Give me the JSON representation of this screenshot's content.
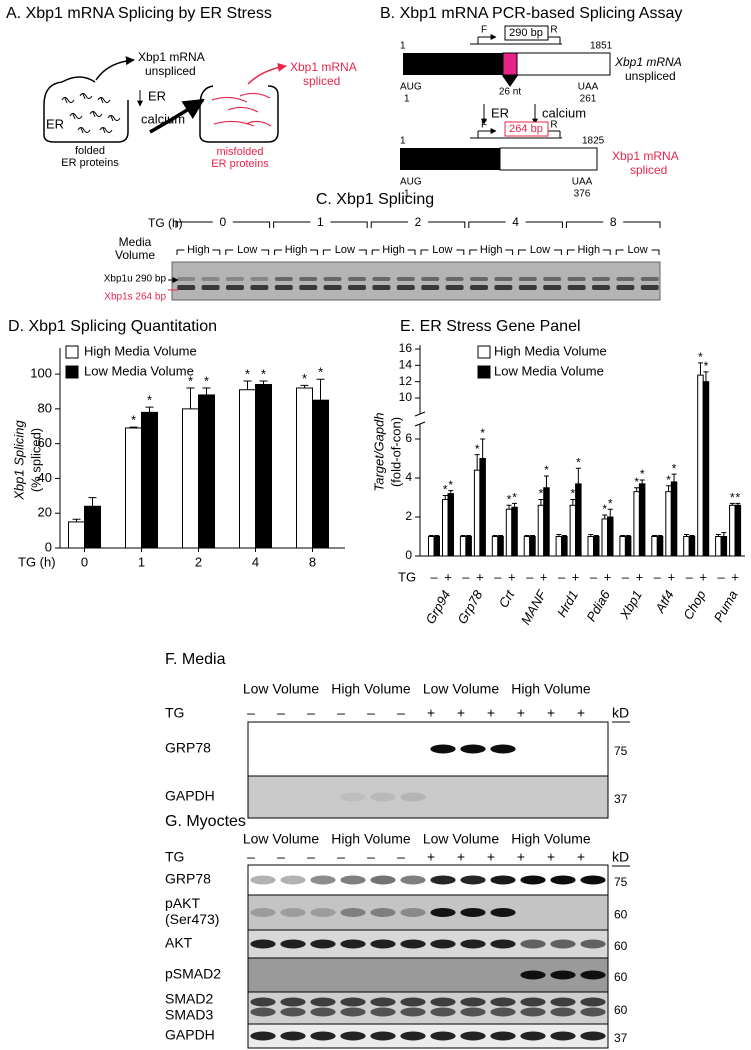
{
  "panel_a": {
    "title": "A. Xbp1 mRNA Splicing by ER Stress",
    "unspliced": [
      "Xbp1 mRNA",
      "unspliced"
    ],
    "er": "ER",
    "folded": [
      "folded",
      "ER proteins"
    ],
    "stimulus": [
      "ER",
      "calcium"
    ],
    "misfolded": [
      "misfolded",
      "ER proteins"
    ],
    "spliced": [
      "Xbp1 mRNA",
      "spliced"
    ]
  },
  "panel_b": {
    "title": "B. Xbp1 mRNA PCR-based Splicing Assay",
    "unspliced": {
      "start": "1",
      "end": "1851",
      "forward": "F",
      "reverse": "R",
      "product": "290 bp",
      "start_codon": "AUG",
      "start_pos": "1",
      "insert": "26 nt",
      "stop_codon": "UAA",
      "stop_pos": "261",
      "label": [
        "Xbp1 mRNA",
        "unspliced"
      ]
    },
    "stimulus": [
      "ER",
      "calcium"
    ],
    "spliced": {
      "start": "1",
      "end": "1825",
      "forward": "F",
      "reverse": "R",
      "product": "264 bp",
      "start_codon": "AUG",
      "start_pos": "1",
      "stop_codon": "UAA",
      "stop_pos": "376",
      "label": [
        "Xbp1 mRNA",
        "spliced"
      ]
    }
  },
  "panel_c": {
    "title": "C. Xbp1 Splicing",
    "tg_label": "TG (h)",
    "times": [
      "0",
      "1",
      "2",
      "4",
      "8"
    ],
    "media_label": [
      "Media",
      "Volume"
    ],
    "volumes": [
      "High",
      "Low",
      "High",
      "Low",
      "High",
      "Low",
      "High",
      "Low",
      "High",
      "Low"
    ],
    "bands": [
      "Xbp1u 290 bp",
      "Xbp1s 264 bp"
    ]
  },
  "chart_data": [
    {
      "type": "bar",
      "title": "D. Xbp1 Splicing Quantitation",
      "xlabel": "TG (h)",
      "ylabel": [
        "Xbp1 Splicing",
        "(% spliced)"
      ],
      "categories": [
        "0",
        "1",
        "2",
        "4",
        "8"
      ],
      "series": [
        {
          "name": "High Media Volume",
          "color": "#ffffff",
          "values": [
            15,
            69,
            80,
            91,
            92
          ],
          "errors": [
            1.5,
            0.5,
            12,
            5,
            1.5
          ],
          "significance": [
            null,
            "*",
            "*",
            "*",
            "*"
          ]
        },
        {
          "name": "Low  Media Volume",
          "color": "#000000",
          "values": [
            24,
            78,
            88,
            94,
            85
          ],
          "errors": [
            5,
            3,
            4,
            2,
            12
          ],
          "significance": [
            null,
            "*",
            "*",
            "*",
            "*"
          ]
        }
      ],
      "ylim": [
        0,
        115
      ],
      "yticks": [
        0,
        20,
        40,
        60,
        80,
        100
      ]
    },
    {
      "type": "bar",
      "title": "E. ER Stress Gene Panel",
      "xlabel": "TG",
      "ylabel": [
        "Target/Gapdh",
        "(fold-of-con)"
      ],
      "groups": [
        "Grp94",
        "Grp78",
        "Crt",
        "MANF",
        "Hrd1",
        "Pdia6",
        "Xbp1",
        "Atf4",
        "Chop",
        "Puma"
      ],
      "categories": [
        "–",
        "+",
        "–",
        "+",
        "–",
        "+",
        "–",
        "+",
        "–",
        "+",
        "–",
        "+",
        "–",
        "+",
        "–",
        "+",
        "–",
        "+",
        "–",
        "+"
      ],
      "series": [
        {
          "name": "High Media Volume",
          "color": "#ffffff",
          "values": [
            1,
            2.9,
            1,
            4.4,
            1,
            2.4,
            1,
            2.6,
            1,
            2.6,
            1,
            1.9,
            1,
            3.3,
            1,
            3.3,
            1,
            12.8,
            1,
            2.6
          ],
          "errors": [
            0.05,
            0.2,
            0.05,
            0.8,
            0.05,
            0.2,
            0.05,
            0.3,
            0.1,
            0.3,
            0.1,
            0.2,
            0.05,
            0.2,
            0.05,
            0.3,
            0.1,
            1.5,
            0.1,
            0.1
          ],
          "significance": [
            null,
            "*",
            null,
            "*",
            null,
            "*",
            null,
            "*",
            null,
            "*",
            null,
            "*",
            null,
            "*",
            null,
            "*",
            null,
            "*",
            null,
            "*"
          ]
        },
        {
          "name": "Low  Media Volume",
          "color": "#000000",
          "values": [
            1,
            3.2,
            1,
            5.0,
            1,
            2.5,
            1,
            3.5,
            1,
            3.7,
            1,
            2.0,
            1,
            3.7,
            1,
            3.8,
            1,
            12,
            1,
            2.6
          ],
          "errors": [
            0.05,
            0.15,
            0.05,
            1.0,
            0.05,
            0.2,
            0.05,
            0.6,
            0.05,
            0.8,
            0.05,
            0.4,
            0.05,
            0.2,
            0.05,
            0.4,
            0.05,
            1.2,
            0.2,
            0.1
          ],
          "significance": [
            null,
            "*",
            null,
            "*",
            null,
            "*",
            null,
            "*",
            null,
            "*",
            null,
            "*",
            null,
            "*",
            null,
            "*",
            null,
            "*",
            null,
            "*"
          ]
        }
      ],
      "ylim": [
        0,
        16
      ],
      "ybreak": [
        6,
        10
      ],
      "yticks": [
        0,
        2,
        4,
        6,
        10,
        12,
        14,
        16
      ]
    }
  ],
  "panel_f": {
    "title": "F. Media",
    "groups": [
      "Low Volume",
      "High Volume",
      "Low Volume",
      "High Volume"
    ],
    "tg_label": "TG",
    "tg": [
      "–",
      "–",
      "–",
      "–",
      "–",
      "–",
      "+",
      "+",
      "+",
      "+",
      "+",
      "+"
    ],
    "kd": "kD",
    "rows": [
      {
        "label": [
          "GRP78"
        ],
        "kd": "75"
      },
      {
        "label": [
          "GAPDH"
        ],
        "kd": "37"
      }
    ]
  },
  "panel_g": {
    "title": "G. Myoctes",
    "groups": [
      "Low Volume",
      "High Volume",
      "Low Volume",
      "High Volume"
    ],
    "tg_label": "TG",
    "tg": [
      "–",
      "–",
      "–",
      "–",
      "–",
      "–",
      "+",
      "+",
      "+",
      "+",
      "+",
      "+"
    ],
    "kd": "kD",
    "rows": [
      {
        "label": [
          "GRP78"
        ],
        "kd": "75"
      },
      {
        "label": [
          "pAKT",
          "(Ser473)"
        ],
        "kd": "60"
      },
      {
        "label": [
          "AKT"
        ],
        "kd": "60"
      },
      {
        "label": [
          "pSMAD2"
        ],
        "kd": "60"
      },
      {
        "label": [
          "SMAD2",
          "SMAD3"
        ],
        "kd": "60"
      },
      {
        "label": [
          "GAPDH"
        ],
        "kd": "37"
      }
    ]
  }
}
